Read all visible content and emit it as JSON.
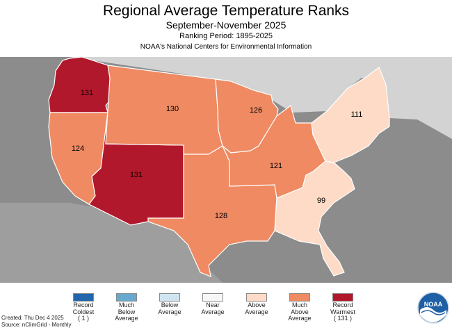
{
  "header": {
    "title": "Regional Average Temperature Ranks",
    "period": "September-November 2025",
    "ranking_period": "Ranking Period: 1895-2025",
    "source_org": "NOAA's National Centers for Environmental Information"
  },
  "regions": [
    {
      "name": "Northwest",
      "rank": "131",
      "category": "Record Warmest"
    },
    {
      "name": "West",
      "rank": "124",
      "category": "Much Above Average"
    },
    {
      "name": "Southwest",
      "rank": "131",
      "category": "Record Warmest"
    },
    {
      "name": "Northern Rockies and Plains",
      "rank": "130",
      "category": "Much Above Average"
    },
    {
      "name": "South",
      "rank": "128",
      "category": "Much Above Average"
    },
    {
      "name": "Upper Midwest",
      "rank": "126",
      "category": "Much Above Average"
    },
    {
      "name": "Ohio Valley",
      "rank": "121",
      "category": "Much Above Average"
    },
    {
      "name": "Northeast",
      "rank": "111",
      "category": "Above Average"
    },
    {
      "name": "Southeast",
      "rank": "99",
      "category": "Above Average"
    }
  ],
  "legend": [
    {
      "label": "Record\nColdest\n( 1 )",
      "color": "#2166ac"
    },
    {
      "label": "Much\nBelow\nAverage",
      "color": "#67a9cf"
    },
    {
      "label": "Below\nAverage",
      "color": "#d1e5f0"
    },
    {
      "label": "Near\nAverage",
      "color": "#f7f7f7"
    },
    {
      "label": "Above\nAverage",
      "color": "#fddbc7"
    },
    {
      "label": "Much\nAbove\nAverage",
      "color": "#ef8a62"
    },
    {
      "label": "Record\nWarmest\n( 131 )",
      "color": "#b2182b"
    }
  ],
  "footer": {
    "created": "Created: Thu Dec  4 2025",
    "source": "Source: nClimGrid - Monthly"
  },
  "logo": {
    "text": "NOAA",
    "icon": "noaa-logo-icon"
  },
  "colors": {
    "background_land": "#8c8c8c",
    "canada": "#d3d3d3",
    "border": "#ffffff"
  }
}
